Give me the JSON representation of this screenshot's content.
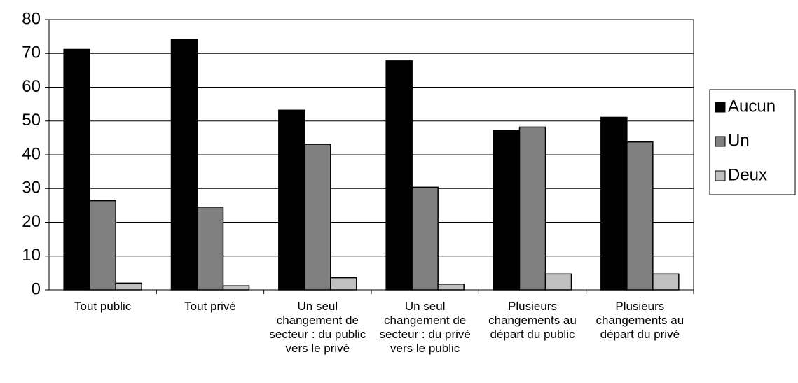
{
  "chart_data": {
    "type": "bar",
    "categories": [
      "Tout public",
      "Tout privé",
      "Un seul changement de secteur : du public vers le privé",
      "Un seul changement de secteur : du privé vers le public",
      "Plusieurs changements au départ du public",
      "Plusieurs changements au départ du privé"
    ],
    "series": [
      {
        "name": "Aucun",
        "color": "#000000",
        "values": [
          71.2,
          74.1,
          53.2,
          67.8,
          47.2,
          51.1
        ]
      },
      {
        "name": "Un",
        "color": "#808080",
        "values": [
          26.4,
          24.5,
          43.1,
          30.4,
          48.2,
          43.8
        ]
      },
      {
        "name": "Deux",
        "color": "#c0c0c0",
        "values": [
          2.0,
          1.2,
          3.6,
          1.7,
          4.7,
          4.7
        ]
      }
    ],
    "ylim": [
      0,
      80
    ],
    "yticks": [
      0,
      10,
      20,
      30,
      40,
      50,
      60,
      70,
      80
    ],
    "grid": true,
    "legend": "right"
  }
}
